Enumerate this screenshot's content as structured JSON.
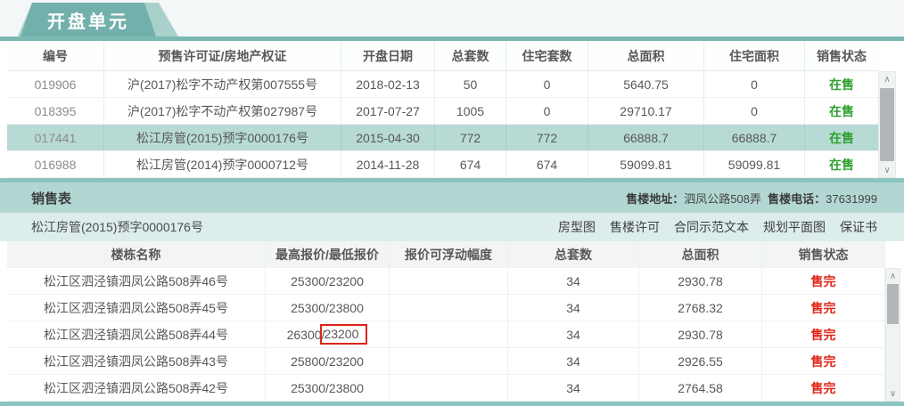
{
  "tab": {
    "label": "开盘单元"
  },
  "colors": {
    "teal_tab": "#72b0ab",
    "teal_bar": "#7cb9b3",
    "row_highlight": "#b7dad5",
    "section_bar": "#b2d7d2",
    "light_row": "#dcedeb",
    "status_selling_green": "#2ca12c",
    "status_soldout_red": "#e0261c",
    "annotation_box_red": "#dc241b"
  },
  "icons": {
    "scroll_up": "∧",
    "scroll_down": "∨"
  },
  "units_table": {
    "headers": [
      "编号",
      "预售许可证/房地产权证",
      "开盘日期",
      "总套数",
      "住宅套数",
      "总面积",
      "住宅面积",
      "销售状态"
    ],
    "rows": [
      {
        "id": "019906",
        "cert": "沪(2017)松字不动产权第007555号",
        "date": "2018-02-13",
        "total_units": "50",
        "res_units": "0",
        "total_area": "5640.75",
        "res_area": "0",
        "status": "在售"
      },
      {
        "id": "018395",
        "cert": "沪(2017)松字不动产权第027987号",
        "date": "2017-07-27",
        "total_units": "1005",
        "res_units": "0",
        "total_area": "29710.17",
        "res_area": "0",
        "status": "在售"
      },
      {
        "id": "017441",
        "cert": "松江房管(2015)预字0000176号",
        "date": "2015-04-30",
        "total_units": "772",
        "res_units": "772",
        "total_area": "66888.7",
        "res_area": "66888.7",
        "status": "在售"
      },
      {
        "id": "016988",
        "cert": "松江房管(2014)预字0000712号",
        "date": "2014-11-28",
        "total_units": "674",
        "res_units": "674",
        "total_area": "59099.81",
        "res_area": "59099.81",
        "status": "在售"
      }
    ]
  },
  "sales_section": {
    "title": "销售表",
    "address_label": "售楼地址：",
    "address": "泗凤公路508弄",
    "phone_label": "售楼电话：",
    "phone": "37631999",
    "permit": "松江房管(2015)预字0000176号",
    "links": [
      "房型图",
      "售楼许可",
      "合同示范文本",
      "规划平面图",
      "保证书"
    ]
  },
  "buildings_table": {
    "headers": [
      "楼栋名称",
      "最高报价/最低报价",
      "报价可浮动幅度",
      "总套数",
      "总面积",
      "销售状态"
    ],
    "rows": [
      {
        "name": "松江区泗泾镇泗凤公路508弄46号",
        "price": "25300/23200",
        "float_range": "",
        "units": "34",
        "area": "2930.78",
        "status": "售完"
      },
      {
        "name": "松江区泗泾镇泗凤公路508弄45号",
        "price": "25300/23800",
        "float_range": "",
        "units": "34",
        "area": "2768.32",
        "status": "售完"
      },
      {
        "name": "松江区泗泾镇泗凤公路508弄44号",
        "price_prefix": "26300/",
        "price_boxed": "23200",
        "float_range": "",
        "units": "34",
        "area": "2930.78",
        "status": "售完"
      },
      {
        "name": "松江区泗泾镇泗凤公路508弄43号",
        "price": "25800/23200",
        "float_range": "",
        "units": "34",
        "area": "2926.55",
        "status": "售完"
      },
      {
        "name": "松江区泗泾镇泗凤公路508弄42号",
        "price": "25300/23800",
        "float_range": "",
        "units": "34",
        "area": "2764.58",
        "status": "售完"
      }
    ]
  }
}
